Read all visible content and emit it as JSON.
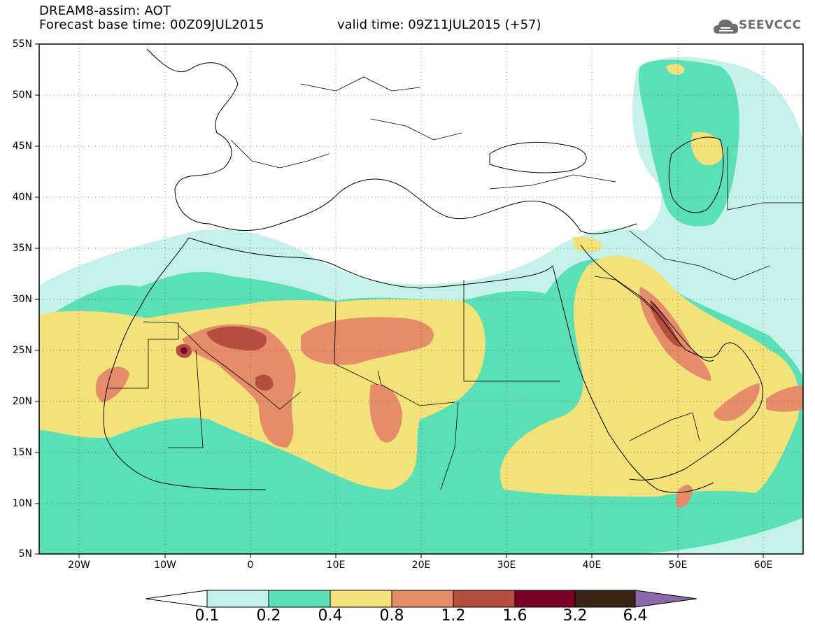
{
  "header": {
    "model_line": "DREAM8-assim: AOT",
    "base_time": "Forecast base time: 00Z09JUL2015",
    "valid_time": "valid time: 09Z11JUL2015 (+57)"
  },
  "logo": {
    "text": "SEEVCCC",
    "icon": "cloud-icon"
  },
  "axes": {
    "lat_labels": [
      "55N",
      "50N",
      "45N",
      "40N",
      "35N",
      "30N",
      "25N",
      "20N",
      "15N",
      "10N",
      "5N"
    ],
    "lon_labels": [
      "20W",
      "10W",
      "0",
      "10E",
      "20E",
      "30E",
      "40E",
      "50E",
      "60E"
    ]
  },
  "colorbar": {
    "labels": [
      "0.1",
      "0.2",
      "0.4",
      "0.8",
      "1.2",
      "1.6",
      "3.2",
      "6.4"
    ],
    "colors": {
      "below": "#ffffff",
      "c01_02": "#c4f2ea",
      "c02_04": "#5bdfb7",
      "c04_08": "#f3e27a",
      "c08_12": "#e58c6a",
      "c12_16": "#b54e40",
      "c16_32": "#7a0025",
      "c32_64": "#3a2417",
      "above": "#8a6aaa"
    }
  }
}
